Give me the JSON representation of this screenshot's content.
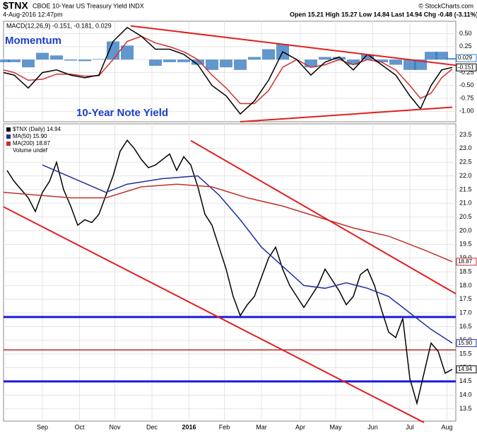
{
  "header": {
    "symbol": "$TNX",
    "name": "CBOE 10-Year US Treasury Yield INDX",
    "date": "4-Aug-2016 12:47pm",
    "quote": "Open 15.21 High 15.27 Low 14.84 Last 14.94 Chg -0.48 (-3.11%)",
    "credit": "© StockCharts.com"
  },
  "chart_data": [
    {
      "type": "line",
      "title": "MACD(12,26,9) -0.151, -0.181, 0.029",
      "annotations": [
        "Momentum",
        "10-Year Note Yield"
      ],
      "xlim": [
        0,
        256
      ],
      "ylim": [
        -1.2,
        0.74
      ],
      "yticks": [
        {
          "value": 0.5,
          "label": "0.50"
        },
        {
          "value": 0.25,
          "label": "0.25"
        },
        {
          "value": 0,
          "label": "0.00"
        },
        {
          "value": -0.25,
          "label": "-0.25"
        },
        {
          "value": -0.5,
          "label": "-0.50"
        },
        {
          "value": -0.75,
          "label": "-0.75"
        },
        {
          "value": -1,
          "label": "-1.00"
        }
      ],
      "xticks": [
        22,
        43,
        63,
        84,
        105,
        125,
        146,
        168,
        188,
        209,
        230,
        251
      ],
      "grid": true,
      "x": [
        0,
        6,
        14,
        22,
        30,
        38,
        46,
        54,
        62,
        70,
        78,
        86,
        94,
        102,
        110,
        118,
        126,
        134,
        142,
        150,
        158,
        166,
        174,
        182,
        190,
        198,
        206,
        214,
        222,
        230,
        236,
        242,
        248,
        254
      ],
      "series": [
        {
          "name": "Histogram",
          "color": "#3a7dc0",
          "style": "bars",
          "last_label": "0.029",
          "values": [
            -0.05,
            -0.05,
            -0.15,
            0.13,
            0.08,
            -0.02,
            -0.03,
            0.01,
            0.35,
            0.27,
            0,
            -0.12,
            -0.05,
            -0.05,
            -0.1,
            -0.2,
            -0.15,
            -0.2,
            0.05,
            0.2,
            0.3,
            0,
            -0.15,
            0.05,
            0.05,
            -0.1,
            0.1,
            -0.05,
            -0.1,
            -0.2,
            -0.2,
            0.15,
            0.15,
            0.029
          ]
        },
        {
          "name": "Signal",
          "color": "#d03030",
          "style": "line",
          "values": [
            -0.2,
            -0.25,
            -0.4,
            -0.38,
            -0.28,
            -0.28,
            -0.32,
            -0.31,
            0,
            0.35,
            0.45,
            0.32,
            0.25,
            0.15,
            0,
            -0.3,
            -0.55,
            -0.85,
            -0.85,
            -0.6,
            -0.15,
            0,
            -0.15,
            -0.1,
            0,
            -0.1,
            0,
            -0.05,
            -0.2,
            -0.5,
            -0.75,
            -0.65,
            -0.35,
            -0.181
          ]
        },
        {
          "name": "MACD",
          "color": "#000000",
          "style": "line",
          "last_label": "-0.151",
          "values": [
            -0.25,
            -0.3,
            -0.55,
            -0.25,
            -0.2,
            -0.3,
            -0.35,
            -0.3,
            0.35,
            0.62,
            0.45,
            0.2,
            0.2,
            0.1,
            -0.1,
            -0.5,
            -0.7,
            -1.05,
            -0.8,
            -0.4,
            0.15,
            0,
            -0.3,
            -0.05,
            0.05,
            -0.2,
            0.1,
            -0.1,
            -0.3,
            -0.7,
            -0.95,
            -0.5,
            -0.2,
            -0.151
          ]
        }
      ],
      "trendlines": [
        {
          "color": "#e02020",
          "x": [
            72,
            256
          ],
          "y": [
            0.65,
            -0.11
          ]
        },
        {
          "color": "#e02020",
          "x": [
            134,
            254
          ],
          "y": [
            -1.2,
            -0.92
          ]
        }
      ],
      "hlines": []
    },
    {
      "type": "line",
      "legend_extra": "Volume undef",
      "xlim": [
        0,
        256
      ],
      "ylim": [
        13.05,
        23.9
      ],
      "yticks": [
        13.5,
        {
          "value": 14,
          "label": "14.0"
        },
        14.5,
        {
          "value": 15,
          "label": "15.0"
        },
        15.5,
        {
          "value": 16,
          "label": "16.0"
        },
        16.5,
        {
          "value": 17,
          "label": "17.0"
        },
        17.5,
        {
          "value": 18,
          "label": "18.0"
        },
        18.5,
        {
          "value": 19,
          "label": "19.0"
        },
        19.5,
        {
          "value": 20,
          "label": "20.0"
        },
        20.5,
        {
          "value": 21,
          "label": "21.0"
        },
        21.5,
        {
          "value": 22,
          "label": "22.0"
        },
        22.5,
        {
          "value": 23,
          "label": "23.0"
        },
        23.5
      ],
      "xticks": [
        {
          "value": 22,
          "label": "Sep"
        },
        {
          "value": 43,
          "label": "Oct"
        },
        {
          "value": 63,
          "label": "Nov"
        },
        {
          "value": 84,
          "label": "Dec"
        },
        {
          "value": 105,
          "label": "2016"
        },
        {
          "value": 125,
          "label": "Feb"
        },
        {
          "value": 146,
          "label": "Mar"
        },
        {
          "value": 168,
          "label": "Apr"
        },
        {
          "value": 188,
          "label": "May"
        },
        {
          "value": 209,
          "label": "Jun"
        },
        {
          "value": 230,
          "label": "Jul"
        },
        {
          "value": 251,
          "label": "Aug"
        }
      ],
      "grid": true,
      "series": [
        {
          "name": "$TNX (Daily) 14.94",
          "color": "#000000",
          "style": "line",
          "last_label": "14.94",
          "x": [
            2,
            6,
            10,
            14,
            18,
            22,
            26,
            30,
            34,
            38,
            42,
            46,
            50,
            54,
            58,
            62,
            66,
            70,
            74,
            78,
            82,
            86,
            90,
            94,
            98,
            102,
            106,
            110,
            114,
            118,
            122,
            126,
            130,
            134,
            138,
            142,
            146,
            150,
            154,
            158,
            162,
            166,
            170,
            174,
            178,
            182,
            186,
            190,
            194,
            198,
            202,
            206,
            210,
            214,
            218,
            222,
            226,
            230,
            234,
            238,
            242,
            246,
            250,
            254
          ],
          "values": [
            22.2,
            21.8,
            21.5,
            21.2,
            20.7,
            21.4,
            21.8,
            22.5,
            21.5,
            20.9,
            20.2,
            20.4,
            20.3,
            20.6,
            21.3,
            22,
            22.9,
            23.3,
            23,
            22.6,
            22.3,
            22.4,
            22.6,
            22.8,
            22.2,
            22.7,
            22.4,
            21.6,
            20.6,
            20.2,
            19.4,
            18.6,
            17.6,
            16.9,
            17.3,
            17.6,
            18.3,
            19,
            19.4,
            18.6,
            18,
            17.6,
            17.2,
            17.6,
            18,
            18.6,
            18.2,
            17.8,
            17.3,
            17.6,
            18.4,
            18.6,
            18,
            17.1,
            16.3,
            16.1,
            16.8,
            14.6,
            13.7,
            14.8,
            15.9,
            15.6,
            14.8,
            14.94
          ]
        },
        {
          "name": "MA(50) 15.90",
          "color": "#1f2fa0",
          "style": "line",
          "last_label": "15.90",
          "x": [
            22,
            58,
            70,
            90,
            110,
            122,
            134,
            146,
            158,
            170,
            182,
            194,
            206,
            218,
            230,
            242,
            254
          ],
          "values": [
            22.4,
            21.4,
            21.7,
            21.9,
            22,
            21.3,
            20.4,
            19.4,
            18.7,
            18,
            17.9,
            18.1,
            17.9,
            17.6,
            17,
            16.4,
            15.9
          ]
        },
        {
          "name": "MA(200) 18.87",
          "color": "#c03030",
          "style": "line",
          "last_label": "18.87",
          "x": [
            0,
            38,
            58,
            78,
            98,
            118,
            138,
            158,
            178,
            198,
            218,
            238,
            254
          ],
          "values": [
            21.4,
            21.2,
            21.2,
            21.6,
            21.7,
            21.6,
            21.2,
            20.9,
            20.5,
            20.1,
            19.8,
            19.3,
            18.87
          ]
        }
      ],
      "trendlines": [
        {
          "color": "#e02020",
          "x": [
            106,
            256
          ],
          "y": [
            23.29,
            17.7
          ]
        },
        {
          "color": "#e02020",
          "x": [
            0,
            238
          ],
          "y": [
            20.87,
            13
          ]
        }
      ],
      "hlines": [
        {
          "value": 16.85,
          "color": "#1a1adc",
          "width": 3
        },
        {
          "value": 15.65,
          "color": "#c02020",
          "width": 1.5
        },
        {
          "value": 14.5,
          "color": "#1a1adc",
          "width": 3
        }
      ]
    }
  ]
}
